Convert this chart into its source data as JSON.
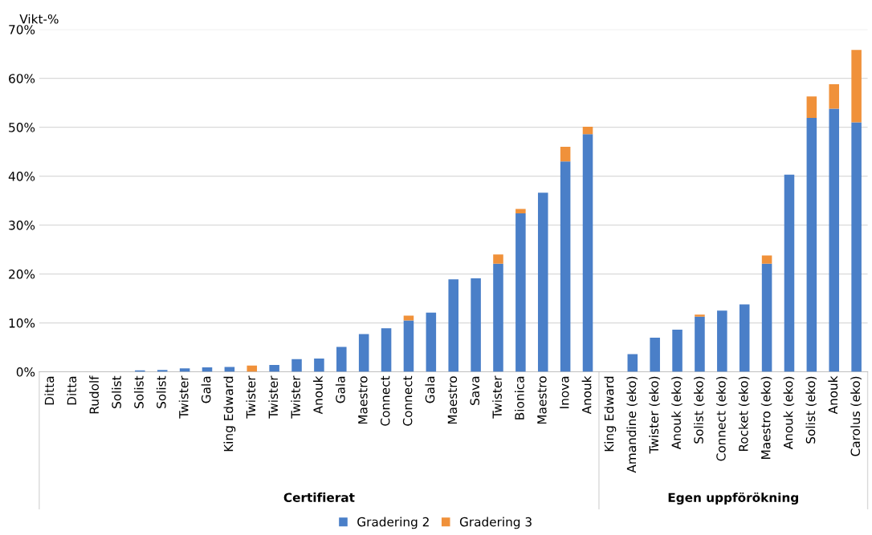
{
  "chart_data": {
    "type": "bar",
    "stacked": true,
    "ylabel": "Vikt-%",
    "categories": [
      "Ditta",
      "Ditta",
      "Rudolf",
      "Solist",
      "Solist",
      "Solist",
      "Twister",
      "Gala",
      "King Edward",
      "Twister",
      "Twister",
      "Twister",
      "Anouk",
      "Gala",
      "Maestro",
      "Connect",
      "Connect",
      "Gala",
      "Maestro",
      "Sava",
      "Twister",
      "Bionica",
      "Maestro",
      "Inova",
      "Anouk",
      "King Edward",
      "Amandine (eko)",
      "Twister (eko)",
      "Anouk (eko)",
      "Solist (eko)",
      "Connect (eko)",
      "Rocket (eko)",
      "Maestro (eko)",
      "Anouk (eko)",
      "Solist (eko)",
      "Anouk",
      "Carolus (eko)"
    ],
    "series": [
      {
        "name": "Gradering 2",
        "color": "#4a7fc8",
        "values": [
          0,
          0,
          0,
          0,
          0.3,
          0.4,
          0.7,
          0.9,
          1.0,
          0,
          1.4,
          2.6,
          2.7,
          5.1,
          7.7,
          8.9,
          10.5,
          12.1,
          18.9,
          19.1,
          22.1,
          32.4,
          36.6,
          43.0,
          48.6,
          0,
          3.6,
          7.0,
          8.6,
          11.3,
          12.5,
          13.8,
          22.1,
          40.3,
          51.9,
          53.8,
          51.0
        ]
      },
      {
        "name": "Gradering 3",
        "color": "#f0913a",
        "values": [
          0,
          0,
          0,
          0,
          0,
          0,
          0,
          0,
          0,
          1.3,
          0,
          0,
          0,
          0,
          0,
          0,
          1.0,
          0,
          0,
          0,
          1.9,
          0.9,
          0,
          3.0,
          1.5,
          0,
          0,
          0,
          0,
          0.4,
          0,
          0,
          1.7,
          0,
          4.4,
          5.0,
          14.8
        ]
      }
    ],
    "ylim": [
      0,
      70
    ],
    "yticks": [
      {
        "value": 0,
        "label": "0%"
      },
      {
        "value": 10,
        "label": "10%"
      },
      {
        "value": 20,
        "label": "20%"
      },
      {
        "value": 30,
        "label": "30%"
      },
      {
        "value": 40,
        "label": "40%"
      },
      {
        "value": 50,
        "label": "50%"
      },
      {
        "value": 60,
        "label": "60%"
      },
      {
        "value": 70,
        "label": "70%"
      }
    ],
    "grid": "y",
    "legend": "bottom",
    "annotations": [
      "Certifierat",
      "Egen uppförökning"
    ]
  }
}
